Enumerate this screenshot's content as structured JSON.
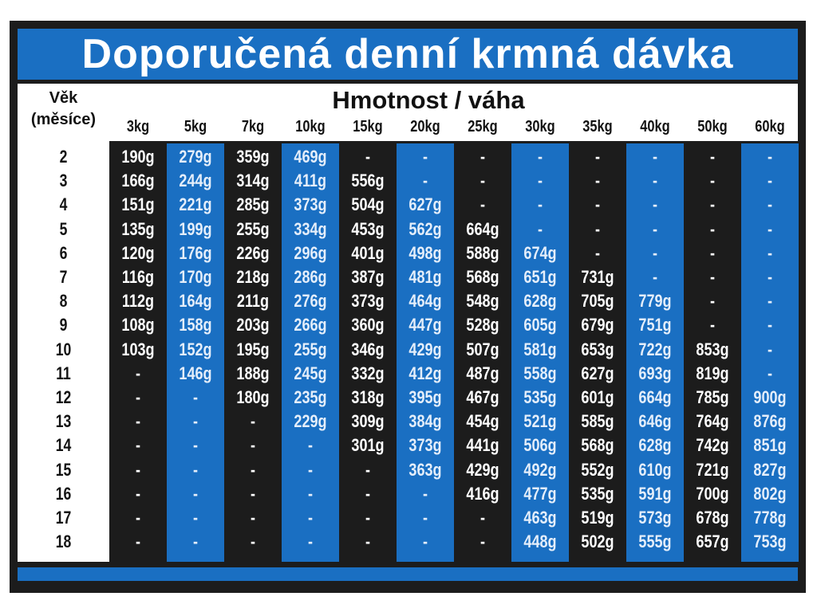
{
  "title": "Doporučená denní krmná dávka",
  "age_header": [
    "Věk",
    "(měsíce)"
  ],
  "weight_header": "Hmotnost / váha",
  "colors": {
    "blue": "#1a6fc2",
    "dark": "#1c1c1c",
    "white": "#ffffff"
  },
  "table": {
    "weights": [
      "3kg",
      "5kg",
      "7kg",
      "10kg",
      "15kg",
      "20kg",
      "25kg",
      "30kg",
      "35kg",
      "40kg",
      "50kg",
      "60kg"
    ],
    "rows": [
      {
        "age": "2",
        "values": [
          "190g",
          "279g",
          "359g",
          "469g",
          "-",
          "-",
          "-",
          "-",
          "-",
          "-",
          "-",
          "-"
        ]
      },
      {
        "age": "3",
        "values": [
          "166g",
          "244g",
          "314g",
          "411g",
          "556g",
          "-",
          "-",
          "-",
          "-",
          "-",
          "-",
          "-"
        ]
      },
      {
        "age": "4",
        "values": [
          "151g",
          "221g",
          "285g",
          "373g",
          "504g",
          "627g",
          "-",
          "-",
          "-",
          "-",
          "-",
          "-"
        ]
      },
      {
        "age": "5",
        "values": [
          "135g",
          "199g",
          "255g",
          "334g",
          "453g",
          "562g",
          "664g",
          "-",
          "-",
          "-",
          "-",
          "-"
        ]
      },
      {
        "age": "6",
        "values": [
          "120g",
          "176g",
          "226g",
          "296g",
          "401g",
          "498g",
          "588g",
          "674g",
          "-",
          "-",
          "-",
          "-"
        ]
      },
      {
        "age": "7",
        "values": [
          "116g",
          "170g",
          "218g",
          "286g",
          "387g",
          "481g",
          "568g",
          "651g",
          "731g",
          "-",
          "-",
          "-"
        ]
      },
      {
        "age": "8",
        "values": [
          "112g",
          "164g",
          "211g",
          "276g",
          "373g",
          "464g",
          "548g",
          "628g",
          "705g",
          "779g",
          "-",
          "-"
        ]
      },
      {
        "age": "9",
        "values": [
          "108g",
          "158g",
          "203g",
          "266g",
          "360g",
          "447g",
          "528g",
          "605g",
          "679g",
          "751g",
          "-",
          "-"
        ]
      },
      {
        "age": "10",
        "values": [
          "103g",
          "152g",
          "195g",
          "255g",
          "346g",
          "429g",
          "507g",
          "581g",
          "653g",
          "722g",
          "853g",
          "-"
        ]
      },
      {
        "age": "11",
        "values": [
          "-",
          "146g",
          "188g",
          "245g",
          "332g",
          "412g",
          "487g",
          "558g",
          "627g",
          "693g",
          "819g",
          "-"
        ]
      },
      {
        "age": "12",
        "values": [
          "-",
          "-",
          "180g",
          "235g",
          "318g",
          "395g",
          "467g",
          "535g",
          "601g",
          "664g",
          "785g",
          "900g"
        ]
      },
      {
        "age": "13",
        "values": [
          "-",
          "-",
          "-",
          "229g",
          "309g",
          "384g",
          "454g",
          "521g",
          "585g",
          "646g",
          "764g",
          "876g"
        ]
      },
      {
        "age": "14",
        "values": [
          "-",
          "-",
          "-",
          "-",
          "301g",
          "373g",
          "441g",
          "506g",
          "568g",
          "628g",
          "742g",
          "851g"
        ]
      },
      {
        "age": "15",
        "values": [
          "-",
          "-",
          "-",
          "-",
          "-",
          "363g",
          "429g",
          "492g",
          "552g",
          "610g",
          "721g",
          "827g"
        ]
      },
      {
        "age": "16",
        "values": [
          "-",
          "-",
          "-",
          "-",
          "-",
          "-",
          "416g",
          "477g",
          "535g",
          "591g",
          "700g",
          "802g"
        ]
      },
      {
        "age": "17",
        "values": [
          "-",
          "-",
          "-",
          "-",
          "-",
          "-",
          "-",
          "463g",
          "519g",
          "573g",
          "678g",
          "778g"
        ]
      },
      {
        "age": "18",
        "values": [
          "-",
          "-",
          "-",
          "-",
          "-",
          "-",
          "-",
          "448g",
          "502g",
          "555g",
          "657g",
          "753g"
        ]
      }
    ]
  }
}
